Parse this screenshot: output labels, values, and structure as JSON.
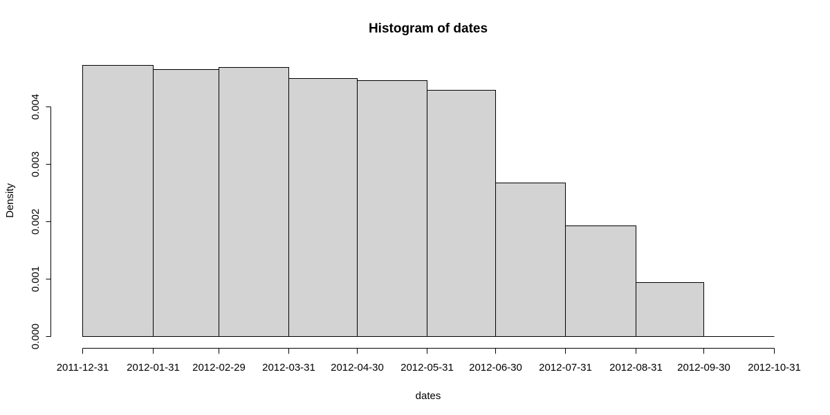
{
  "chart_data": {
    "type": "bar",
    "title": "Histogram of dates",
    "xlabel": "dates",
    "ylabel": "Density",
    "bin_edges": [
      "2011-12-31",
      "2012-01-31",
      "2012-02-29",
      "2012-03-31",
      "2012-04-30",
      "2012-05-31",
      "2012-06-30",
      "2012-07-31",
      "2012-08-31",
      "2012-09-30",
      "2012-10-31"
    ],
    "values": [
      0.00472,
      0.00465,
      0.00468,
      0.00449,
      0.00446,
      0.00429,
      0.00267,
      0.00193,
      0.00094,
      0.0
    ],
    "x_ticks": [
      "2011-12-31",
      "2012-01-31",
      "2012-02-29",
      "2012-03-31",
      "2012-04-30",
      "2012-05-31",
      "2012-06-30",
      "2012-07-31",
      "2012-08-31",
      "2012-09-30",
      "2012-10-31"
    ],
    "y_ticks": [
      "0.000",
      "0.001",
      "0.002",
      "0.003",
      "0.004"
    ],
    "ylim": [
      0,
      0.00472
    ],
    "grid": false,
    "legend": "none",
    "colors": {
      "bar_fill": "#d3d3d3",
      "bar_stroke": "#000000"
    }
  }
}
